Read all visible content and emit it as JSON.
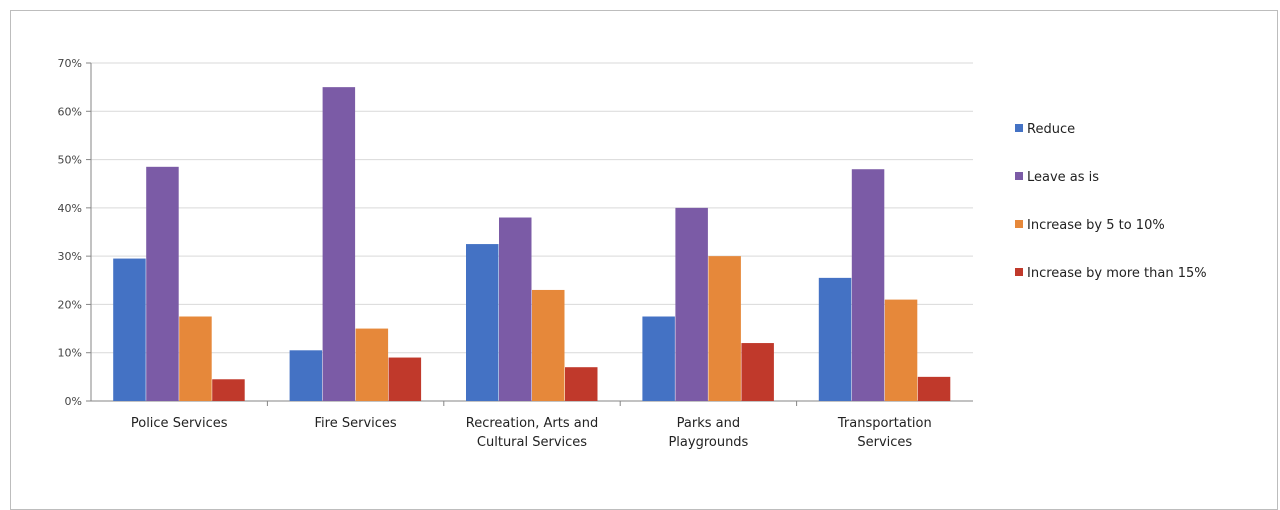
{
  "chart_data": {
    "type": "bar",
    "categories": [
      [
        "Police Services"
      ],
      [
        "Fire Services"
      ],
      [
        "Recreation, Arts and",
        "Cultural Services"
      ],
      [
        "Parks and",
        "Playgrounds"
      ],
      [
        "Transportation",
        "Services"
      ]
    ],
    "series": [
      {
        "name": "Reduce",
        "color": "#4472C4",
        "values": [
          29.5,
          10.5,
          32.5,
          17.5,
          25.5
        ]
      },
      {
        "name": "Leave as is",
        "color": "#7B5BA6",
        "values": [
          48.5,
          65,
          38,
          40,
          48
        ]
      },
      {
        "name": "Increase by 5 to 10%",
        "color": "#E6883A",
        "values": [
          17.5,
          15,
          23,
          30,
          21
        ]
      },
      {
        "name": "Increase by more than 15%",
        "color": "#C0392B",
        "values": [
          4.5,
          9,
          7,
          12,
          5
        ]
      }
    ],
    "ylim": [
      0,
      70
    ],
    "yticks": [
      "0%",
      "10%",
      "20%",
      "30%",
      "40%",
      "50%",
      "60%",
      "70%"
    ],
    "grid": true,
    "legend_position": "right"
  }
}
